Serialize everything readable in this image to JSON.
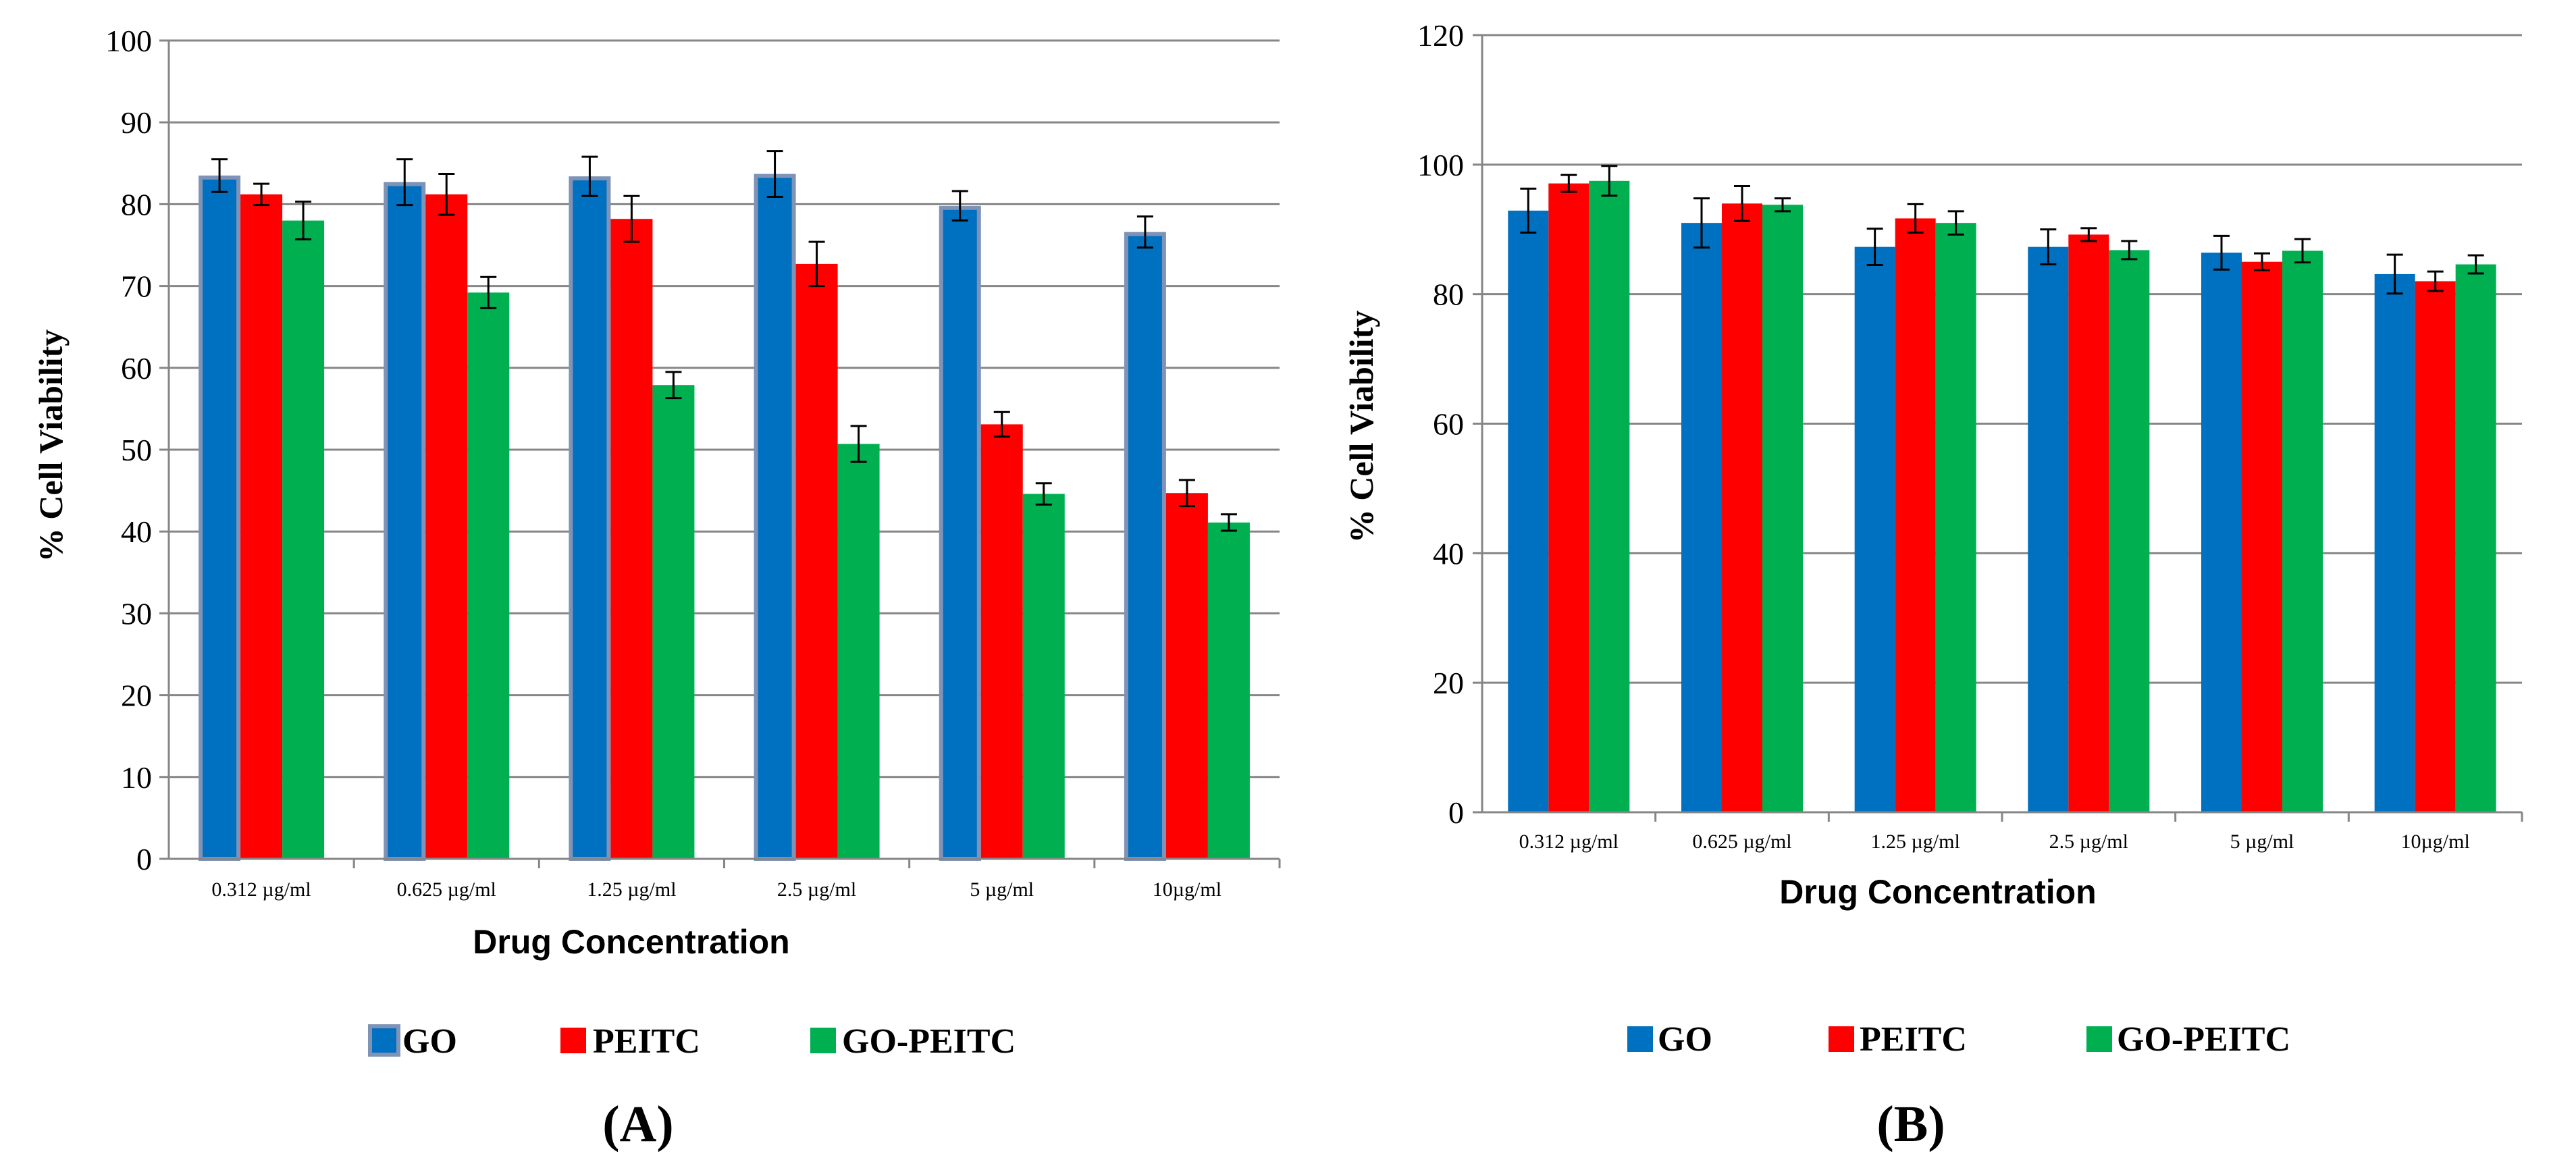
{
  "colors": {
    "go": "#0070C0",
    "go_border": "#7F93B7",
    "peitc": "#FF0000",
    "gopeitc": "#00B050",
    "grid": "#868686",
    "text": "#000000"
  },
  "chart_data": [
    {
      "type": "bar",
      "panel_label": "(A)",
      "title": "",
      "xlabel": "Drug Concentration",
      "ylabel": "% Cell Viability",
      "ylim": [
        0,
        100
      ],
      "yticks": [
        "0",
        "10",
        "20",
        "30",
        "40",
        "50",
        "60",
        "70",
        "80",
        "90",
        "100"
      ],
      "grid": true,
      "legend_position": "bottom",
      "categories": [
        "0.312 µg/ml",
        "0.625 µg/ml",
        "1.25 µg/ml",
        "2.5 µg/ml",
        "5 µg/ml",
        "10µg/ml"
      ],
      "series": [
        {
          "name": "GO",
          "color_key": "go",
          "values": [
            83.5,
            82.7,
            83.4,
            83.7,
            79.8,
            76.6
          ],
          "errors": [
            2.0,
            2.8,
            2.4,
            2.8,
            1.8,
            1.9
          ]
        },
        {
          "name": "PEITC",
          "color_key": "peitc",
          "values": [
            81.2,
            81.2,
            78.2,
            72.7,
            53.1,
            44.7
          ],
          "errors": [
            1.3,
            2.5,
            2.8,
            2.7,
            1.5,
            1.6
          ]
        },
        {
          "name": "GO-PEITC",
          "color_key": "gopeitc",
          "values": [
            78.0,
            69.2,
            57.9,
            50.7,
            44.6,
            41.1
          ],
          "errors": [
            2.3,
            1.9,
            1.6,
            2.2,
            1.3,
            1.0
          ]
        }
      ]
    },
    {
      "type": "bar",
      "panel_label": "(B)",
      "title": "",
      "xlabel": "Drug Concentration",
      "ylabel": "% Cell Viability",
      "ylim": [
        0,
        120
      ],
      "yticks": [
        "0",
        "20",
        "40",
        "60",
        "80",
        "100",
        "120"
      ],
      "grid": true,
      "legend_position": "bottom",
      "categories": [
        "0.312 µg/ml",
        "0.625 µg/ml",
        "1.25 µg/ml",
        "2.5 µg/ml",
        "5 µg/ml",
        "10µg/ml"
      ],
      "series": [
        {
          "name": "GO",
          "color_key": "go",
          "values": [
            92.9,
            91.0,
            87.3,
            87.3,
            86.4,
            83.1
          ],
          "errors": [
            3.4,
            3.8,
            2.8,
            2.7,
            2.6,
            3.0
          ]
        },
        {
          "name": "PEITC",
          "color_key": "peitc",
          "values": [
            97.1,
            94.0,
            91.7,
            89.2,
            85.0,
            82.0
          ],
          "errors": [
            1.3,
            2.7,
            2.2,
            1.0,
            1.3,
            1.5
          ]
        },
        {
          "name": "GO-PEITC",
          "color_key": "gopeitc",
          "values": [
            97.5,
            93.8,
            91.0,
            86.8,
            86.7,
            84.6
          ],
          "errors": [
            2.3,
            1.0,
            1.8,
            1.4,
            1.8,
            1.4
          ]
        }
      ]
    }
  ]
}
